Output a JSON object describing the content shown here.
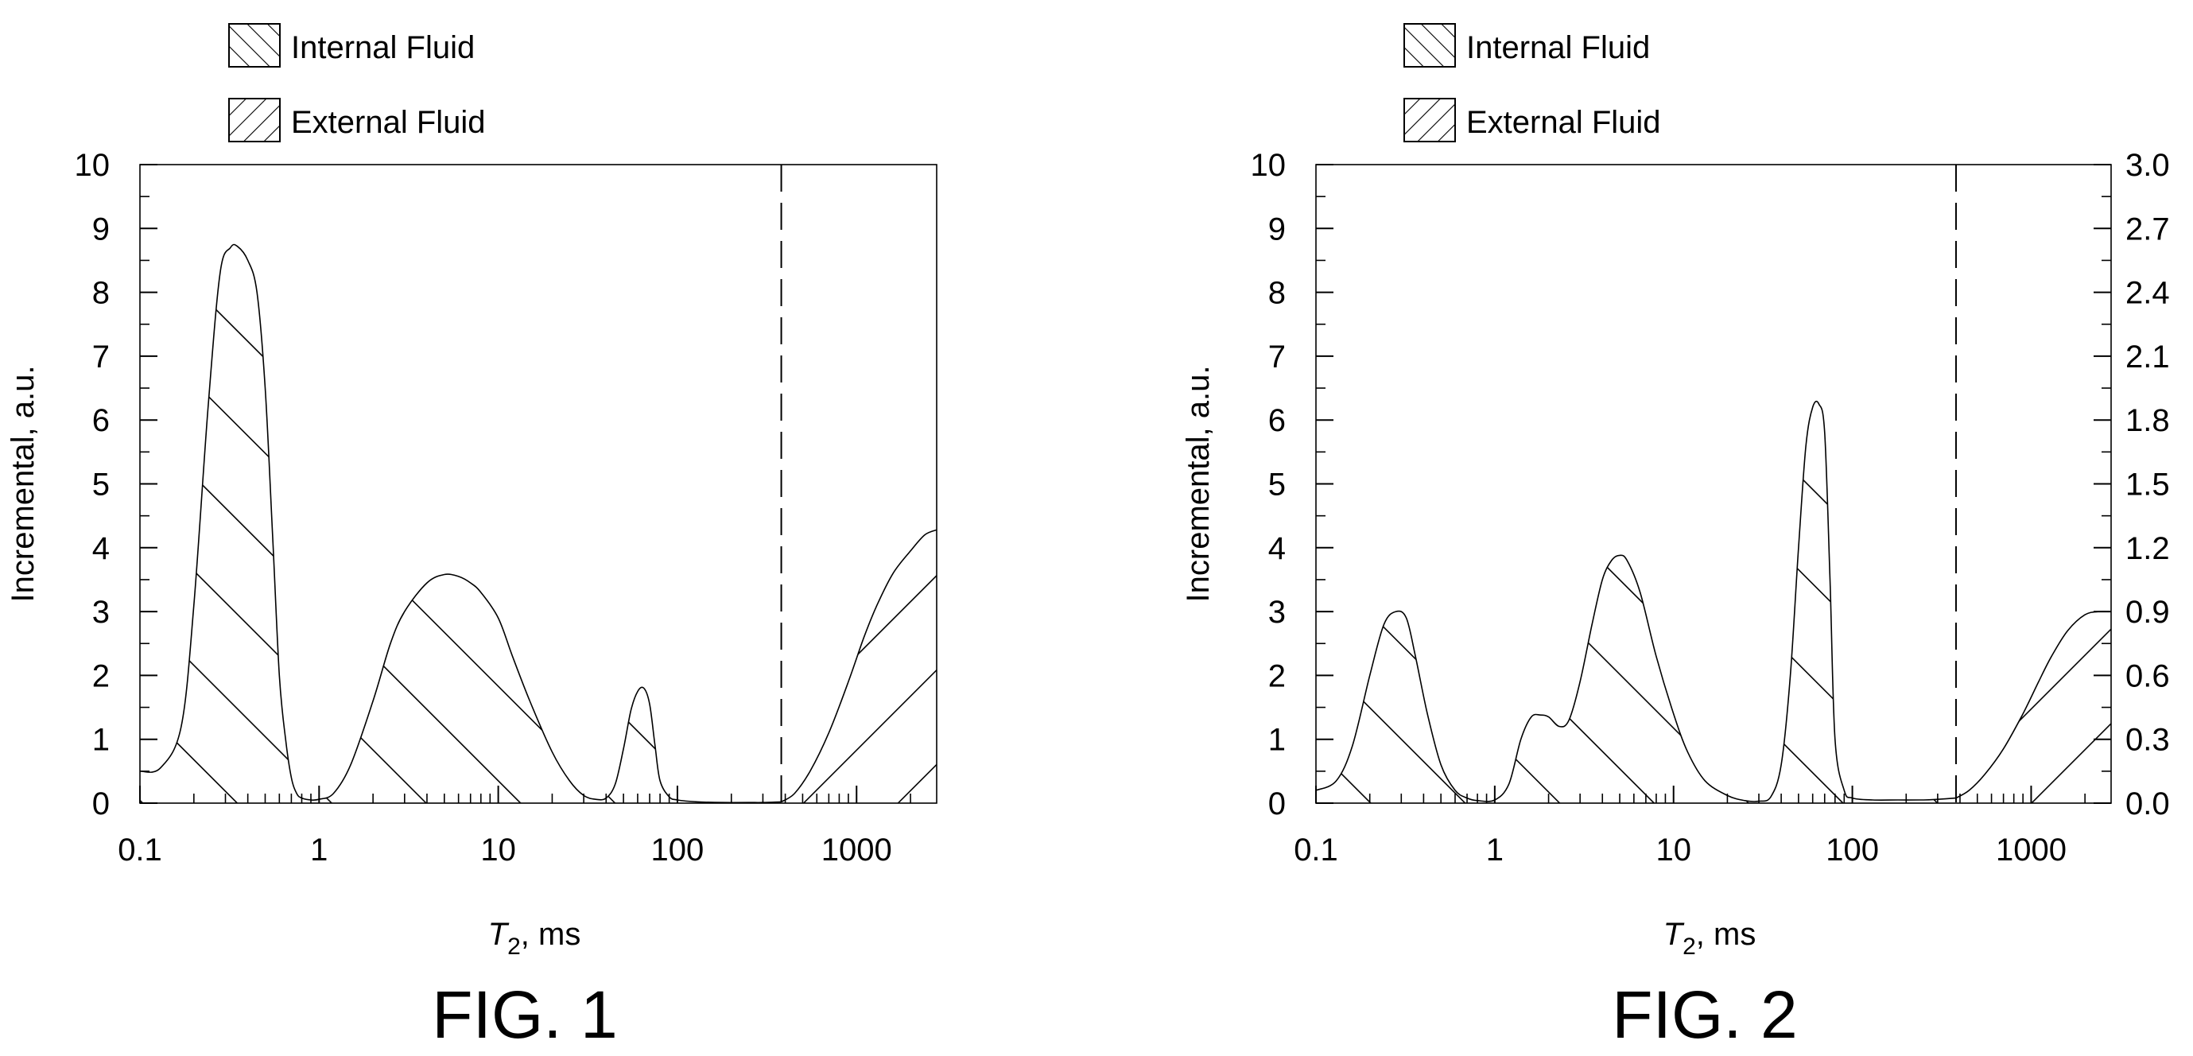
{
  "chart_data": [
    {
      "type": "area",
      "title": "FIG. 1",
      "xlabel_symbol": "T",
      "xlabel_subscript": "2",
      "xlabel_unit": ", ms",
      "ylabel": "Incremental, a.u.",
      "x_scale": "log",
      "xlim": [
        0.1,
        2800
      ],
      "ylim": [
        0,
        10
      ],
      "x_ticks": [
        {
          "value": 0.1,
          "label": "0.1"
        },
        {
          "value": 1,
          "label": "1"
        },
        {
          "value": 10,
          "label": "10"
        },
        {
          "value": 100,
          "label": "100"
        },
        {
          "value": 1000,
          "label": "1000"
        }
      ],
      "y_ticks": [
        "0",
        "1",
        "2",
        "3",
        "4",
        "5",
        "6",
        "7",
        "8",
        "9",
        "10"
      ],
      "cutoff_x": 380,
      "legend": [
        {
          "name": "Internal Fluid",
          "pattern": "forward-hatch"
        },
        {
          "name": "External Fluid",
          "pattern": "back-hatch"
        }
      ],
      "series": [
        {
          "name": "Internal Fluid",
          "x": [
            0.1,
            0.13,
            0.17,
            0.2,
            0.24,
            0.28,
            0.32,
            0.35,
            0.4,
            0.45,
            0.5,
            0.55,
            0.6,
            0.65,
            0.7,
            0.75,
            0.8,
            0.9,
            1.0,
            1.2,
            1.5,
            2.0,
            2.5,
            3.0,
            4.0,
            5.0,
            6.0,
            7.0,
            8.0,
            10,
            12,
            15,
            20,
            25,
            30,
            35,
            40,
            45,
            50,
            55,
            60,
            65,
            70,
            75,
            80,
            90,
            100,
            130,
            180,
            250,
            300,
            380
          ],
          "y": [
            0.5,
            0.55,
            1.2,
            3.1,
            6.2,
            8.3,
            8.7,
            8.72,
            8.5,
            8.0,
            6.5,
            4.2,
            2.0,
            1.0,
            0.4,
            0.15,
            0.08,
            0.05,
            0.06,
            0.15,
            0.6,
            1.6,
            2.5,
            3.0,
            3.45,
            3.58,
            3.55,
            3.45,
            3.3,
            2.9,
            2.3,
            1.6,
            0.8,
            0.35,
            0.12,
            0.06,
            0.08,
            0.3,
            0.85,
            1.45,
            1.75,
            1.8,
            1.55,
            0.9,
            0.35,
            0.1,
            0.05,
            0.02,
            0.01,
            0.01,
            0.01,
            0.02
          ]
        },
        {
          "name": "External Fluid",
          "x": [
            380,
            450,
            550,
            700,
            900,
            1100,
            1300,
            1600,
            2000,
            2400,
            2800
          ],
          "y": [
            0.02,
            0.15,
            0.5,
            1.1,
            1.9,
            2.6,
            3.1,
            3.6,
            3.95,
            4.2,
            4.28
          ]
        }
      ]
    },
    {
      "type": "area",
      "title": "FIG. 2",
      "xlabel_symbol": "T",
      "xlabel_subscript": "2",
      "xlabel_unit": ", ms",
      "ylabel": "Incremental, a.u.",
      "x_scale": "log",
      "xlim": [
        0.1,
        2800
      ],
      "ylim": [
        0,
        10
      ],
      "y2lim": [
        0,
        3
      ],
      "x_ticks": [
        {
          "value": 0.1,
          "label": "0.1"
        },
        {
          "value": 1,
          "label": "1"
        },
        {
          "value": 10,
          "label": "10"
        },
        {
          "value": 100,
          "label": "100"
        },
        {
          "value": 1000,
          "label": "1000"
        }
      ],
      "y_ticks": [
        "0",
        "1",
        "2",
        "3",
        "4",
        "5",
        "6",
        "7",
        "8",
        "9",
        "10"
      ],
      "y2_ticks": [
        "0.0",
        "0.3",
        "0.6",
        "0.9",
        "1.2",
        "1.5",
        "1.8",
        "2.1",
        "2.4",
        "2.7",
        "3.0"
      ],
      "cutoff_x": 380,
      "legend": [
        {
          "name": "Internal Fluid",
          "pattern": "forward-hatch"
        },
        {
          "name": "External Fluid",
          "pattern": "back-hatch"
        }
      ],
      "series": [
        {
          "name": "Internal Fluid",
          "x": [
            0.1,
            0.13,
            0.16,
            0.2,
            0.24,
            0.28,
            0.32,
            0.36,
            0.42,
            0.5,
            0.6,
            0.7,
            0.8,
            1.0,
            1.2,
            1.4,
            1.6,
            1.8,
            2.0,
            2.3,
            2.6,
            3.0,
            3.5,
            4.0,
            4.5,
            5.0,
            5.5,
            6.5,
            8.0,
            10,
            12,
            15,
            20,
            25,
            30,
            35,
            40,
            45,
            50,
            55,
            60,
            65,
            70,
            75,
            80,
            90,
            100,
            130,
            180,
            250,
            300,
            380
          ],
          "y": [
            0.2,
            0.35,
            0.9,
            2.0,
            2.8,
            3.0,
            2.9,
            2.3,
            1.4,
            0.6,
            0.2,
            0.08,
            0.04,
            0.05,
            0.3,
            1.0,
            1.35,
            1.38,
            1.35,
            1.2,
            1.3,
            1.9,
            2.8,
            3.5,
            3.8,
            3.88,
            3.8,
            3.3,
            2.3,
            1.4,
            0.8,
            0.35,
            0.12,
            0.04,
            0.03,
            0.1,
            0.6,
            2.0,
            4.0,
            5.6,
            6.2,
            6.25,
            5.8,
            3.5,
            1.0,
            0.2,
            0.08,
            0.05,
            0.05,
            0.05,
            0.06,
            0.08
          ]
        },
        {
          "name": "External Fluid",
          "x": [
            380,
            450,
            550,
            700,
            900,
            1100,
            1300,
            1600,
            2000,
            2400,
            2800
          ],
          "y": [
            0.08,
            0.2,
            0.45,
            0.85,
            1.4,
            1.9,
            2.3,
            2.7,
            2.95,
            3.0,
            3.0
          ]
        }
      ]
    }
  ]
}
